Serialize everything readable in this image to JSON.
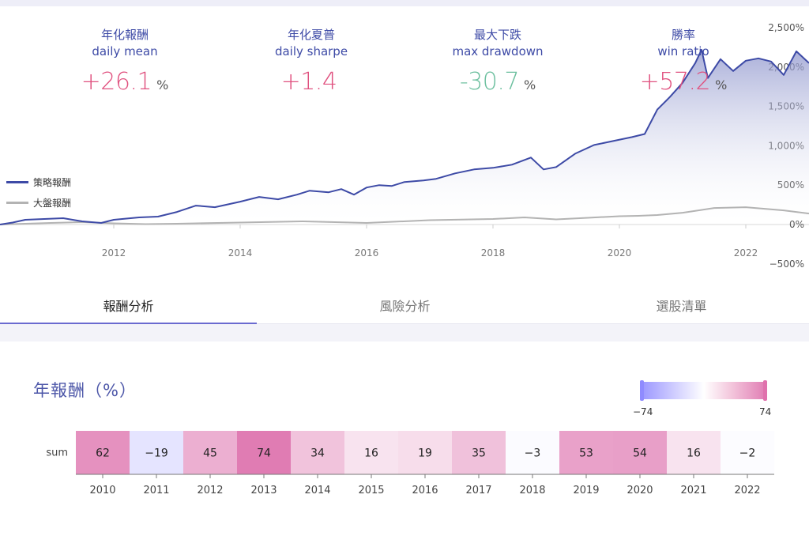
{
  "metrics": [
    {
      "zh": "年化報酬",
      "en": "daily mean",
      "value": "+26.1",
      "unit": "%",
      "color": "#e0517f"
    },
    {
      "zh": "年化夏普",
      "en": "daily sharpe",
      "value": "+1.4",
      "unit": "",
      "color": "#e0517f"
    },
    {
      "zh": "最大下跌",
      "en": "max drawdown",
      "value": "-30.7",
      "unit": "%",
      "color": "#6bbf9e"
    },
    {
      "zh": "勝率",
      "en": "win ratio",
      "value": "+57.2",
      "unit": "%",
      "color": "#e0517f"
    }
  ],
  "legend": {
    "strategy": "策略報酬",
    "market": "大盤報酬"
  },
  "colors": {
    "strategy": "#3d4aa6",
    "market": "#b3b3b3",
    "accent": "#6a6ad0"
  },
  "tabs": [
    {
      "label": "報酬分析",
      "active": true
    },
    {
      "label": "風險分析",
      "active": false
    },
    {
      "label": "選股清單",
      "active": false
    }
  ],
  "heatmap": {
    "title": "年報酬（%）",
    "scale_min_label": "−74",
    "scale_max_label": "74",
    "row_label": "sum"
  },
  "chart_data": [
    {
      "type": "area",
      "x_ticks": [
        "2012",
        "2014",
        "2016",
        "2018",
        "2020",
        "2022"
      ],
      "y_ticks": [
        "2,500%",
        "2,000%",
        "1,500%",
        "1,000%",
        "500%",
        "0%",
        "−500%"
      ],
      "ylim": [
        -500,
        2500
      ],
      "xlim": [
        2010.2,
        2023.0
      ],
      "series": [
        {
          "name": "策略報酬",
          "x": [
            2010.2,
            2010.4,
            2010.6,
            2010.9,
            2011.2,
            2011.5,
            2011.8,
            2012.0,
            2012.2,
            2012.4,
            2012.7,
            2013.0,
            2013.3,
            2013.6,
            2014.0,
            2014.3,
            2014.6,
            2014.9,
            2015.1,
            2015.4,
            2015.6,
            2015.8,
            2016.0,
            2016.2,
            2016.4,
            2016.6,
            2016.9,
            2017.1,
            2017.4,
            2017.7,
            2018.0,
            2018.3,
            2018.6,
            2018.8,
            2019.0,
            2019.3,
            2019.6,
            2019.9,
            2020.2,
            2020.4,
            2020.6,
            2020.8,
            2021.0,
            2021.2,
            2021.3,
            2021.4,
            2021.6,
            2021.8,
            2022.0,
            2022.2,
            2022.4,
            2022.6,
            2022.8,
            2023.0
          ],
          "values": [
            0,
            25,
            60,
            70,
            80,
            40,
            20,
            60,
            75,
            90,
            100,
            160,
            240,
            220,
            290,
            350,
            320,
            380,
            430,
            410,
            450,
            380,
            470,
            500,
            490,
            540,
            560,
            580,
            650,
            700,
            720,
            760,
            850,
            700,
            730,
            900,
            1010,
            1060,
            1110,
            1150,
            1460,
            1620,
            1800,
            2050,
            2220,
            1860,
            2100,
            1950,
            2080,
            2110,
            2070,
            1900,
            2200,
            2050
          ]
        },
        {
          "name": "大盤報酬",
          "x": [
            2010.2,
            2011.0,
            2011.5,
            2012.0,
            2012.5,
            2013.0,
            2014.0,
            2015.0,
            2016.0,
            2017.0,
            2018.0,
            2018.5,
            2019.0,
            2019.5,
            2020.0,
            2020.3,
            2020.6,
            2021.0,
            2021.5,
            2022.0,
            2022.3,
            2022.6,
            2023.0
          ],
          "values": [
            0,
            20,
            30,
            15,
            5,
            10,
            25,
            40,
            20,
            55,
            70,
            90,
            65,
            85,
            105,
            110,
            120,
            150,
            210,
            220,
            200,
            180,
            140
          ]
        }
      ]
    },
    {
      "type": "heatmap",
      "row": "sum",
      "categories": [
        "2010",
        "2011",
        "2012",
        "2013",
        "2014",
        "2015",
        "2016",
        "2017",
        "2018",
        "2019",
        "2020",
        "2021",
        "2022"
      ],
      "values": [
        62,
        -19,
        45,
        74,
        34,
        16,
        19,
        35,
        -3,
        53,
        54,
        16,
        -2
      ],
      "range": [
        -74,
        74
      ]
    }
  ]
}
